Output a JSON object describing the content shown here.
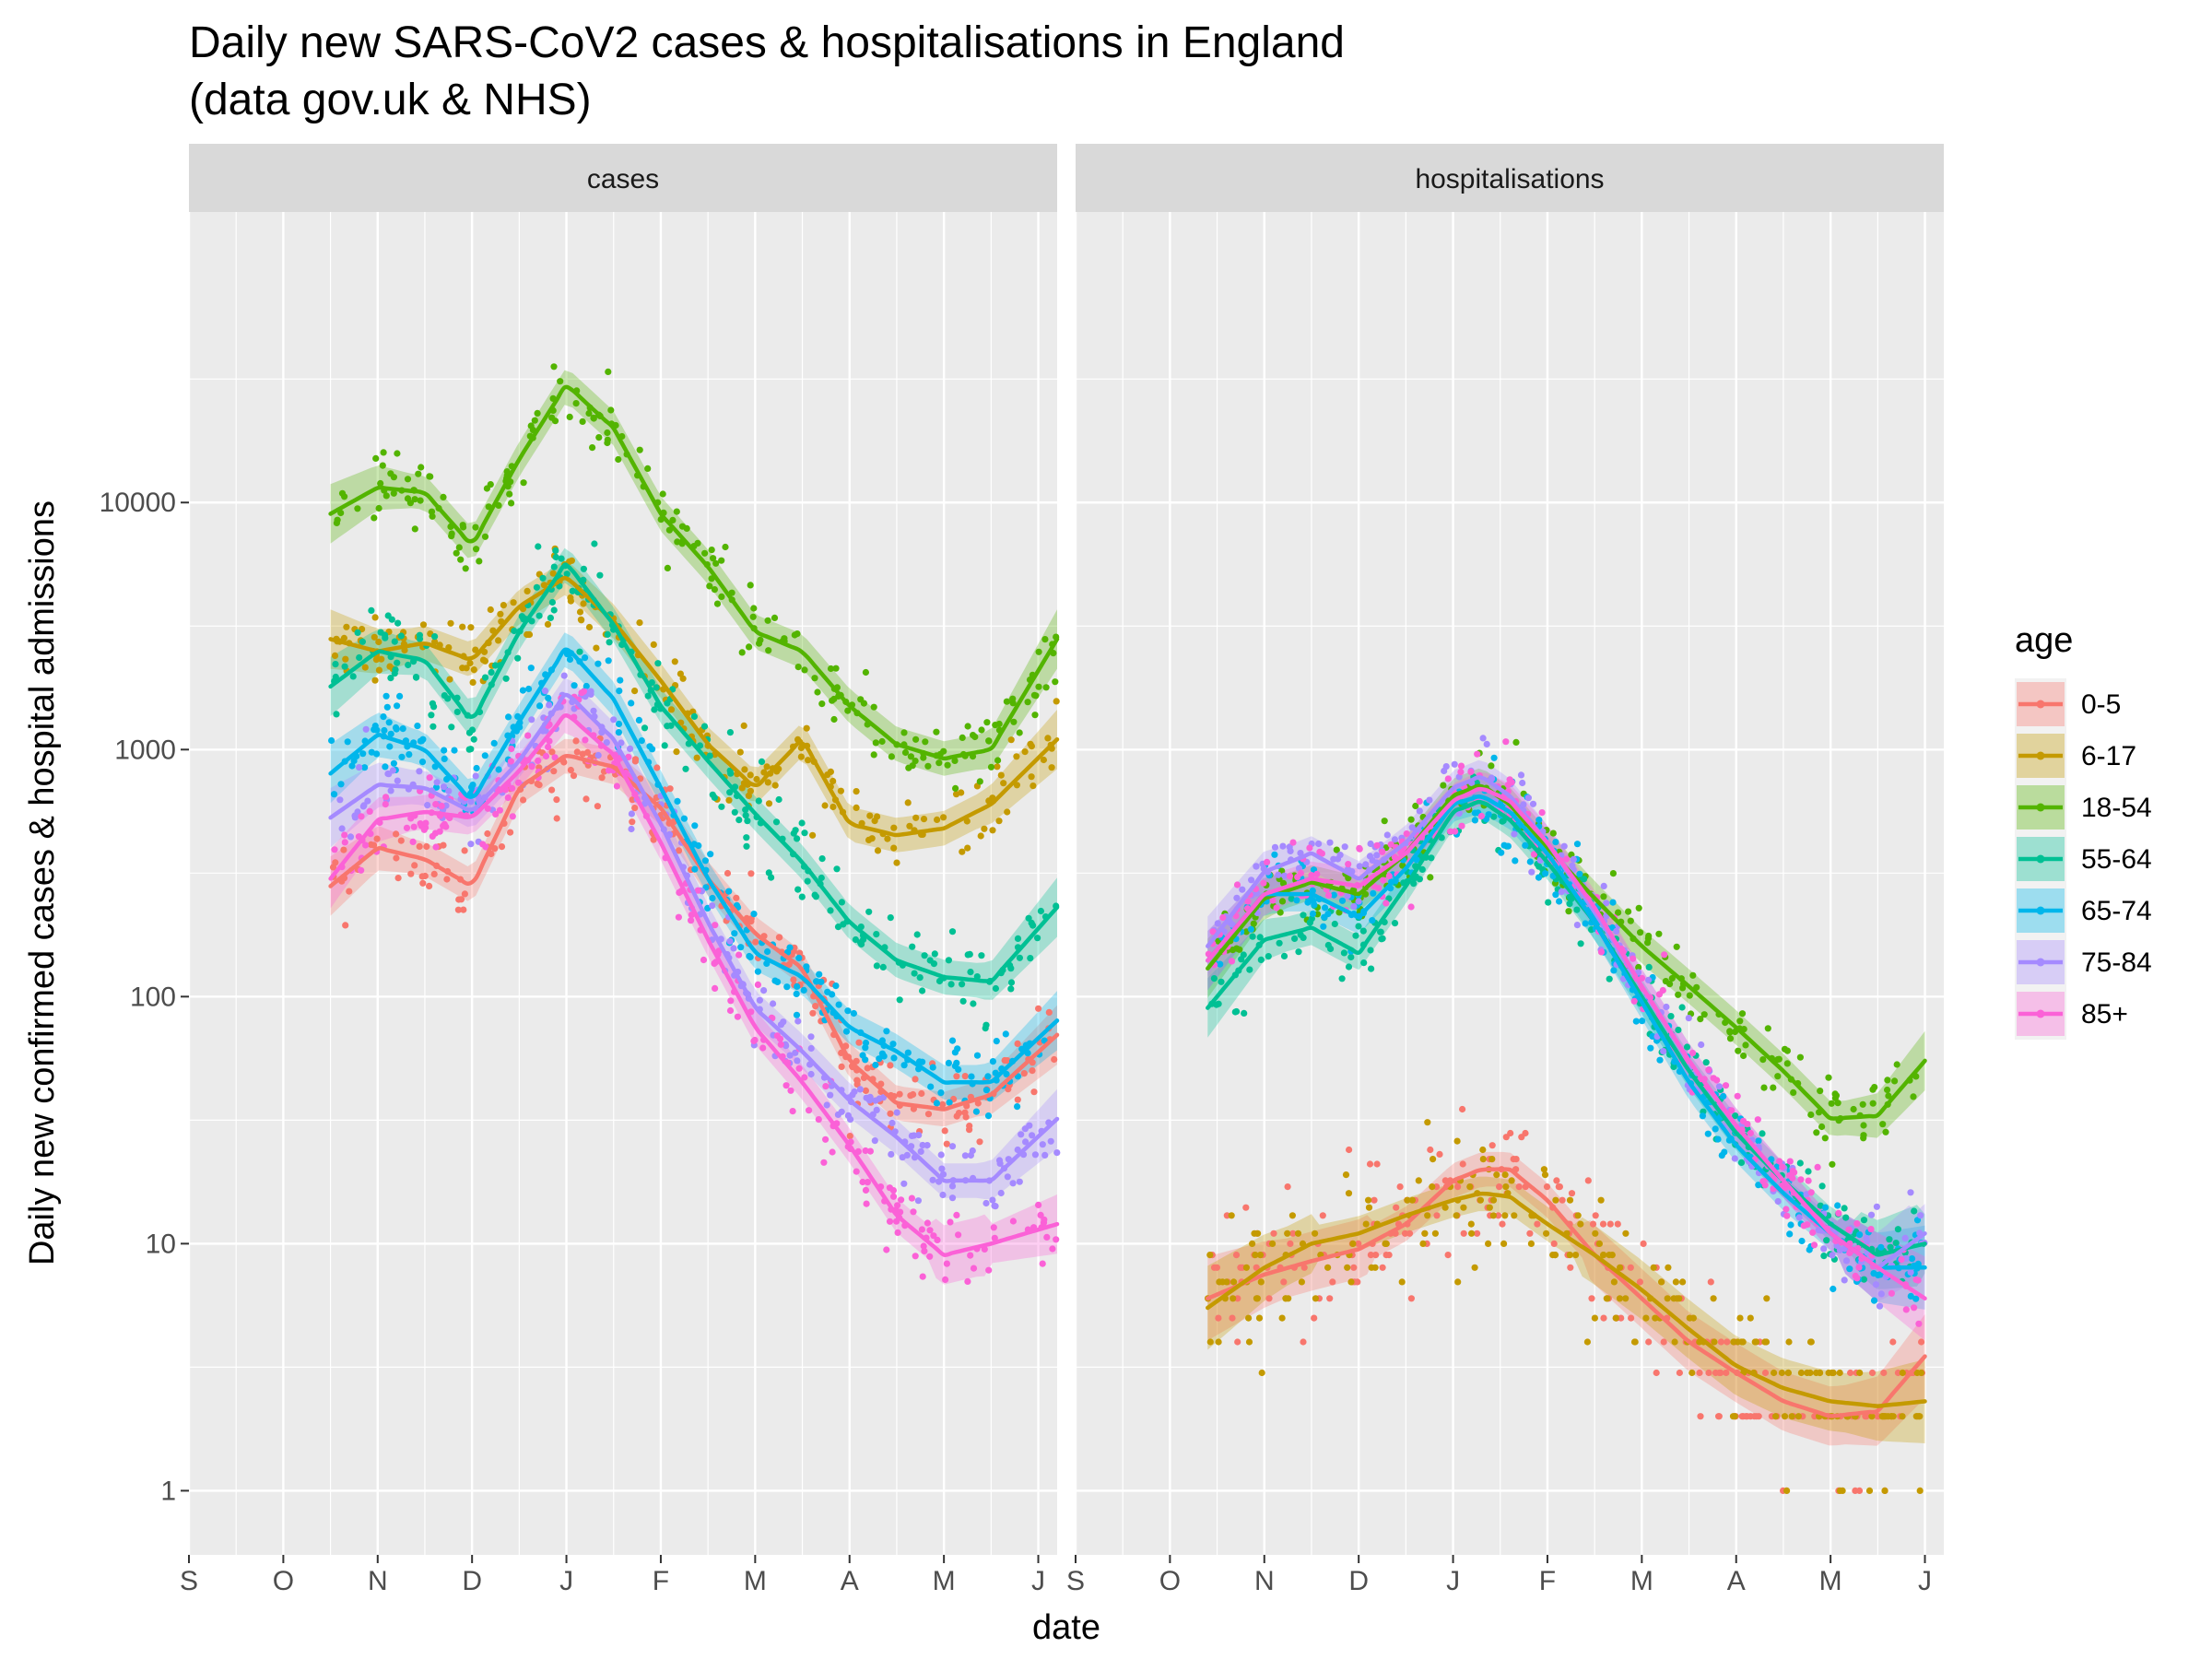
{
  "chart_data": {
    "type": "scatter",
    "title": "Daily new SARS-CoV2 cases & hospitalisations in England",
    "subtitle": "(data gov.uk & NHS)",
    "xlabel": "date",
    "ylabel": "Daily new confirmed cases & hospital admissions",
    "yscale": "log10",
    "ylim": [
      0.55,
      150000
    ],
    "xlim": [
      0,
      9.2
    ],
    "x_ticks": [
      {
        "label": "S",
        "x": 0
      },
      {
        "label": "O",
        "x": 1
      },
      {
        "label": "N",
        "x": 2
      },
      {
        "label": "D",
        "x": 3
      },
      {
        "label": "J",
        "x": 4
      },
      {
        "label": "F",
        "x": 5
      },
      {
        "label": "M",
        "x": 6
      },
      {
        "label": "A",
        "x": 7
      },
      {
        "label": "M",
        "x": 8
      },
      {
        "label": "J",
        "x": 9
      }
    ],
    "y_ticks": [
      {
        "label": "1",
        "value": 1
      },
      {
        "label": "10",
        "value": 10
      },
      {
        "label": "100",
        "value": 100
      },
      {
        "label": "1000",
        "value": 1000
      },
      {
        "label": "10000",
        "value": 10000
      }
    ],
    "grid": true,
    "legend": {
      "title": "age",
      "position": "right",
      "entries": [
        {
          "label": "0-5",
          "color": "#F8766D"
        },
        {
          "label": "6-17",
          "color": "#C49A00"
        },
        {
          "label": "18-54",
          "color": "#53B400"
        },
        {
          "label": "55-64",
          "color": "#00C094"
        },
        {
          "label": "65-74",
          "color": "#00B6EB"
        },
        {
          "label": "75-84",
          "color": "#A58AFF"
        },
        {
          "label": "85+",
          "color": "#FB61D7"
        }
      ]
    },
    "panels": [
      {
        "strip": "cases",
        "series": [
          {
            "group": "0-5",
            "color": "#F8766D",
            "x": [
              1.5,
              2.0,
              2.5,
              3.0,
              3.5,
              4.0,
              4.5,
              5.0,
              5.5,
              6.0,
              6.5,
              7.0,
              7.5,
              8.0,
              8.5,
              9.2
            ],
            "y": [
              280,
              400,
              360,
              280,
              700,
              950,
              850,
              580,
              300,
              180,
              130,
              55,
              37,
              35,
              40,
              70
            ]
          },
          {
            "group": "6-17",
            "color": "#C49A00",
            "x": [
              1.5,
              2.0,
              2.5,
              3.0,
              3.5,
              4.0,
              4.5,
              5.0,
              5.5,
              6.0,
              6.5,
              7.0,
              7.5,
              8.0,
              8.5,
              9.2
            ],
            "y": [
              2800,
              2500,
              2700,
              2300,
              3800,
              5000,
              3300,
              1900,
              1050,
              700,
              1100,
              500,
              450,
              480,
              600,
              1100
            ]
          },
          {
            "group": "18-54",
            "color": "#53B400",
            "x": [
              1.5,
              2.0,
              2.5,
              3.0,
              3.5,
              4.0,
              4.5,
              5.0,
              5.5,
              6.0,
              6.5,
              7.0,
              7.5,
              8.0,
              8.5,
              9.2
            ],
            "y": [
              9000,
              11500,
              11000,
              6700,
              15000,
              30000,
              20000,
              9000,
              5500,
              3000,
              2500,
              1500,
              1050,
              920,
              1000,
              2800
            ]
          },
          {
            "group": "55-64",
            "color": "#00C094",
            "x": [
              1.5,
              2.0,
              2.5,
              3.0,
              3.5,
              4.0,
              4.5,
              5.0,
              5.5,
              6.0,
              6.5,
              7.0,
              7.5,
              8.0,
              8.5,
              9.2
            ],
            "y": [
              1800,
              2500,
              2300,
              1300,
              3000,
              5700,
              3200,
              1500,
              900,
              550,
              350,
              200,
              140,
              120,
              115,
              230
            ]
          },
          {
            "group": "65-74",
            "color": "#00B6EB",
            "x": [
              1.5,
              2.0,
              2.5,
              3.0,
              3.5,
              4.0,
              4.5,
              5.0,
              5.5,
              6.0,
              6.5,
              7.0,
              7.5,
              8.0,
              8.5,
              9.2
            ],
            "y": [
              800,
              1150,
              1000,
              620,
              1300,
              2600,
              1600,
              700,
              300,
              150,
              120,
              75,
              60,
              45,
              45,
              80
            ]
          },
          {
            "group": "75-84",
            "color": "#A58AFF",
            "x": [
              1.5,
              2.0,
              2.5,
              3.0,
              3.5,
              4.0,
              4.5,
              5.0,
              5.5,
              6.0,
              6.5,
              7.0,
              7.5,
              8.0,
              8.5,
              9.2
            ],
            "y": [
              530,
              720,
              700,
              560,
              900,
              1700,
              1100,
              500,
              200,
              90,
              60,
              38,
              27,
              18,
              18,
              32
            ]
          },
          {
            "group": "85+",
            "color": "#FB61D7",
            "x": [
              1.5,
              2.0,
              2.5,
              3.0,
              3.5,
              4.0,
              4.5,
              5.0,
              5.5,
              6.0,
              6.5,
              7.0,
              7.5,
              8.0,
              8.5,
              9.2
            ],
            "y": [
              300,
              520,
              560,
              530,
              820,
              1400,
              950,
              420,
              170,
              75,
              45,
              25,
              13,
              9,
              10,
              12
            ]
          }
        ]
      },
      {
        "strip": "hospitalisations",
        "series": [
          {
            "group": "0-5",
            "color": "#F8766D",
            "x": [
              1.4,
              2.0,
              2.5,
              3.0,
              3.5,
              4.0,
              4.3,
              4.6,
              5.0,
              5.5,
              6.0,
              6.5,
              7.0,
              7.5,
              8.0,
              8.5,
              9.0
            ],
            "y": [
              6,
              7.5,
              8.5,
              9.5,
              12,
              18,
              20,
              20,
              15,
              9,
              6,
              4,
              3,
              2.3,
              2,
              2.1,
              3.5
            ]
          },
          {
            "group": "6-17",
            "color": "#C49A00",
            "x": [
              1.4,
              2.0,
              2.5,
              3.0,
              3.5,
              4.0,
              4.3,
              4.6,
              5.0,
              5.5,
              6.0,
              6.5,
              7.0,
              7.5,
              8.0,
              8.5,
              9.0
            ],
            "y": [
              5.5,
              8,
              10,
              11,
              13,
              15,
              16,
              15.5,
              12,
              9,
              6.5,
              4.5,
              3.2,
              2.6,
              2.3,
              2.2,
              2.3
            ]
          },
          {
            "group": "18-54",
            "color": "#53B400",
            "x": [
              1.4,
              2.0,
              2.5,
              3.0,
              3.5,
              4.0,
              4.3,
              4.6,
              5.0,
              5.5,
              6.0,
              6.5,
              7.0,
              7.5,
              8.0,
              8.5,
              9.0
            ],
            "y": [
              130,
              250,
              290,
              260,
              380,
              650,
              720,
              600,
              400,
              250,
              160,
              110,
              75,
              50,
              32,
              33,
              55
            ]
          },
          {
            "group": "55-64",
            "color": "#00C094",
            "x": [
              1.4,
              2.0,
              2.5,
              3.0,
              3.5,
              4.0,
              4.3,
              4.6,
              5.0,
              5.5,
              6.0,
              6.5,
              7.0,
              7.5,
              8.0,
              8.5,
              9.0
            ],
            "y": [
              90,
              170,
              190,
              150,
              280,
              560,
              620,
              520,
              350,
              200,
              100,
              50,
              28,
              18,
              12,
              9,
              10
            ]
          },
          {
            "group": "65-74",
            "color": "#00B6EB",
            "x": [
              1.4,
              2.0,
              2.5,
              3.0,
              3.5,
              4.0,
              4.3,
              4.6,
              5.0,
              5.5,
              6.0,
              6.5,
              7.0,
              7.5,
              8.0,
              8.5,
              9.0
            ],
            "y": [
              140,
              260,
              260,
              210,
              330,
              600,
              650,
              560,
              380,
              200,
              95,
              45,
              25,
              16,
              11,
              8,
              8
            ]
          },
          {
            "group": "75-84",
            "color": "#A58AFF",
            "x": [
              1.4,
              2.0,
              2.5,
              3.0,
              3.5,
              4.0,
              4.3,
              4.6,
              5.0,
              5.5,
              6.0,
              6.5,
              7.0,
              7.5,
              8.0,
              8.5,
              9.0
            ],
            "y": [
              160,
              320,
              380,
              300,
              420,
              700,
              780,
              650,
              420,
              220,
              110,
              55,
              30,
              18,
              11,
              8,
              11
            ]
          },
          {
            "group": "85+",
            "color": "#FB61D7",
            "x": [
              1.4,
              2.0,
              2.5,
              3.0,
              3.5,
              4.0,
              4.3,
              4.6,
              5.0,
              5.5,
              6.0,
              6.5,
              7.0,
              7.5,
              8.0,
              8.5,
              9.0
            ],
            "y": [
              140,
              260,
              300,
              280,
              380,
              620,
              700,
              620,
              420,
              230,
              110,
              55,
              30,
              18,
              11,
              8,
              6
            ]
          }
        ]
      }
    ]
  }
}
